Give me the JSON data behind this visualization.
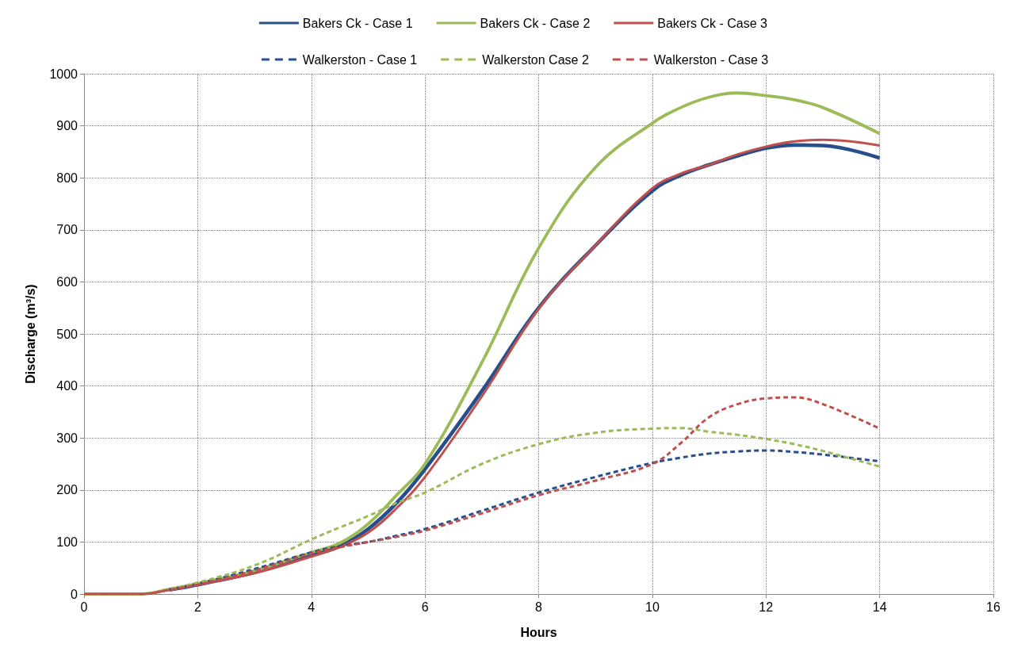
{
  "chart_data": {
    "type": "line",
    "xlabel": "Hours",
    "ylabel": "Discharge (m³/s)",
    "x": [
      0,
      0.5,
      1,
      1.5,
      2,
      3,
      4,
      4.5,
      5,
      5.5,
      6,
      7,
      8,
      9,
      10,
      10.5,
      11,
      11.5,
      12,
      12.5,
      13,
      14
    ],
    "series": [
      {
        "name": "Bakers Ck - Case 1",
        "color": "#264f8c",
        "line_style": "solid",
        "values": [
          null,
          null,
          null,
          8,
          18,
          42,
          75,
          92,
          125,
          175,
          240,
          390,
          550,
          670,
          775,
          805,
          825,
          842,
          857,
          863,
          862,
          838
        ]
      },
      {
        "name": "Bakers Ck - Case 2",
        "color": "#9bbb59",
        "line_style": "solid",
        "values": [
          0,
          0,
          0,
          9,
          20,
          45,
          80,
          98,
          135,
          190,
          250,
          445,
          665,
          820,
          905,
          935,
          955,
          963,
          958,
          950,
          935,
          885
        ]
      },
      {
        "name": "Bakers Ck - Case 3",
        "color": "#c0504d",
        "line_style": "solid",
        "values": [
          0,
          0,
          0,
          8,
          18,
          40,
          72,
          90,
          118,
          165,
          225,
          380,
          548,
          670,
          780,
          808,
          825,
          845,
          860,
          870,
          873,
          862
        ]
      },
      {
        "name": "Walkerston - Case 1",
        "color": "#264f8c",
        "line_style": "dashed",
        "values": [
          null,
          null,
          null,
          9,
          20,
          48,
          80,
          92,
          100,
          112,
          125,
          160,
          195,
          225,
          252,
          262,
          270,
          274,
          276,
          273,
          268,
          255
        ]
      },
      {
        "name": "Walkerston Case 2",
        "color": "#9bbb59",
        "line_style": "dashed",
        "values": [
          0,
          0,
          0,
          10,
          22,
          55,
          105,
          128,
          150,
          175,
          195,
          250,
          288,
          310,
          318,
          319,
          312,
          306,
          298,
          288,
          275,
          245
        ]
      },
      {
        "name": "Walkerston - Case 3",
        "color": "#c0504d",
        "line_style": "dashed",
        "values": [
          0,
          0,
          0,
          8,
          18,
          45,
          78,
          90,
          100,
          110,
          122,
          155,
          190,
          218,
          250,
          290,
          340,
          365,
          376,
          378,
          365,
          318
        ]
      }
    ],
    "xlim": [
      0,
      16
    ],
    "xticks": [
      0,
      2,
      4,
      6,
      8,
      10,
      12,
      14,
      16
    ],
    "ylim": [
      0,
      1000
    ],
    "yticks": [
      0,
      100,
      200,
      300,
      400,
      500,
      600,
      700,
      800,
      900,
      {
        "value": 1000,
        "label": "1000"
      }
    ],
    "grid": true,
    "legend": "top",
    "marker": "none"
  }
}
